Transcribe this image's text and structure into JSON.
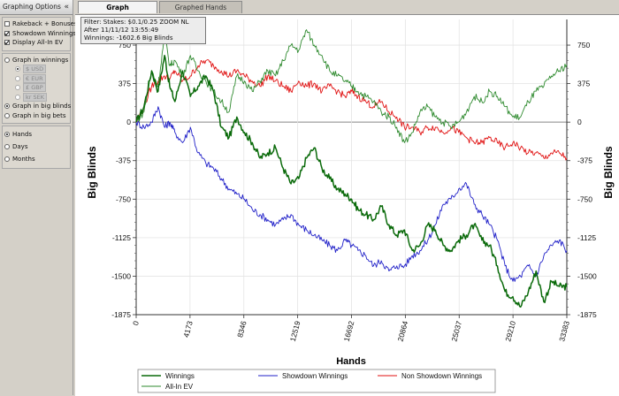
{
  "sidebar": {
    "title": "Graphing Options",
    "collapse_glyph": "«",
    "checkboxes": [
      {
        "label": "Rakeback + Bonuses",
        "checked": false
      },
      {
        "label": "Showdown Winnings",
        "checked": true
      },
      {
        "label": "Display All-In EV",
        "checked": true
      }
    ],
    "graph_in_winnings": "Graph in winnings",
    "currencies": [
      "$ USD",
      "€ EUR",
      "£ GBP",
      "kr SEK"
    ],
    "graph_in_big_blinds": "Graph in big blinds",
    "graph_in_big_bets": "Graph in big bets",
    "periods": [
      "Hands",
      "Days",
      "Months"
    ]
  },
  "tabs": {
    "graph": "Graph",
    "graphed_hands": "Graphed Hands"
  },
  "info": {
    "filter": "Filter: Stakes: $0.1/0.25 ZOOM NL",
    "after": "After 11/11/12 13:55:49",
    "winnings": "Winnings: -1602.6 Big Blinds"
  },
  "colors": {
    "winnings": "#0a6a0a",
    "showdown": "#2020c8",
    "non_showdown": "#e01010",
    "allin_ev": "#2e8a2e"
  },
  "chart_data": {
    "type": "line",
    "title": "",
    "xlabel": "Hands",
    "ylabel": "Big Blinds",
    "xlim": [
      0,
      33383
    ],
    "ylim": [
      -1875,
      1000
    ],
    "x_ticks": [
      0,
      4173,
      8346,
      12519,
      16692,
      20864,
      25037,
      29210,
      33383
    ],
    "y_ticks": [
      750,
      375,
      0,
      -375,
      -750,
      -1125,
      -1500,
      -1875
    ],
    "grid": true,
    "legend_position": "bottom",
    "series": [
      {
        "name": "Winnings",
        "color_key": "winnings",
        "x": [
          0,
          600,
          1200,
          1700,
          2200,
          2600,
          3000,
          3600,
          4200,
          4800,
          5400,
          6000,
          6600,
          7200,
          7800,
          8400,
          9000,
          9600,
          10200,
          10800,
          11400,
          12000,
          12600,
          13200,
          13800,
          14400,
          15000,
          15600,
          16200,
          16700,
          17200,
          17800,
          18400,
          19000,
          19600,
          20200,
          20800,
          21400,
          22000,
          22600,
          23200,
          23800,
          24400,
          25000,
          25600,
          26200,
          26800,
          27400,
          28000,
          28600,
          29200,
          29800,
          30400,
          31000,
          31600,
          32200,
          32800,
          33383
        ],
        "y": [
          0,
          150,
          500,
          300,
          650,
          350,
          200,
          500,
          250,
          350,
          450,
          300,
          -50,
          -150,
          50,
          -100,
          -200,
          -350,
          -300,
          -250,
          -450,
          -600,
          -550,
          -350,
          -250,
          -450,
          -550,
          -650,
          -700,
          -750,
          -850,
          -900,
          -950,
          -820,
          -1000,
          -1100,
          -1050,
          -1250,
          -1200,
          -1000,
          -1050,
          -1200,
          -1250,
          -1150,
          -1100,
          -1000,
          -1150,
          -1200,
          -1400,
          -1650,
          -1700,
          -1800,
          -1650,
          -1450,
          -1750,
          -1550,
          -1600,
          -1603
        ]
      },
      {
        "name": "Showdown Winnings",
        "color_key": "showdown",
        "x": [
          0,
          600,
          1200,
          1700,
          2200,
          2600,
          3000,
          3600,
          4200,
          4800,
          5400,
          6000,
          6600,
          7200,
          7800,
          8400,
          9000,
          9600,
          10200,
          10800,
          11400,
          12000,
          12600,
          13200,
          13800,
          14400,
          15000,
          15600,
          16200,
          16700,
          17200,
          17800,
          18400,
          19000,
          19600,
          20200,
          20800,
          21400,
          22000,
          22600,
          23200,
          23800,
          24400,
          25000,
          25600,
          26200,
          26800,
          27400,
          28000,
          28600,
          29200,
          29800,
          30400,
          31000,
          31600,
          32200,
          32800,
          33383
        ],
        "y": [
          0,
          -50,
          0,
          150,
          -50,
          0,
          -100,
          -200,
          -50,
          -300,
          -400,
          -450,
          -550,
          -650,
          -700,
          -750,
          -850,
          -900,
          -950,
          -1000,
          -950,
          -900,
          -1000,
          -1050,
          -1100,
          -1150,
          -1200,
          -1250,
          -1150,
          -1200,
          -1250,
          -1300,
          -1400,
          -1350,
          -1450,
          -1400,
          -1400,
          -1300,
          -1250,
          -1150,
          -1000,
          -800,
          -750,
          -650,
          -600,
          -800,
          -900,
          -1000,
          -1150,
          -1400,
          -1550,
          -1500,
          -1400,
          -1500,
          -1300,
          -1200,
          -1150,
          -1250
        ]
      },
      {
        "name": "Non Showdown Winnings",
        "color_key": "non_showdown",
        "x": [
          0,
          600,
          1200,
          1700,
          2200,
          2600,
          3000,
          3600,
          4200,
          4800,
          5400,
          6000,
          6600,
          7200,
          7800,
          8400,
          9000,
          9600,
          10200,
          10800,
          11400,
          12000,
          12600,
          13200,
          13800,
          14400,
          15000,
          15600,
          16200,
          16700,
          17200,
          17800,
          18400,
          19000,
          19600,
          20200,
          20800,
          21400,
          22000,
          22600,
          23200,
          23800,
          24400,
          25000,
          25600,
          26200,
          26800,
          27400,
          28000,
          28600,
          29200,
          29800,
          30400,
          31000,
          31600,
          32200,
          32800,
          33383
        ],
        "y": [
          0,
          150,
          350,
          400,
          450,
          420,
          500,
          400,
          450,
          550,
          600,
          550,
          500,
          450,
          500,
          450,
          400,
          350,
          450,
          400,
          350,
          300,
          400,
          350,
          380,
          300,
          350,
          300,
          250,
          300,
          250,
          200,
          150,
          200,
          100,
          50,
          -50,
          -50,
          -100,
          -50,
          -50,
          -100,
          -50,
          -100,
          -150,
          -200,
          -200,
          -150,
          -200,
          -250,
          -200,
          -250,
          -300,
          -300,
          -350,
          -300,
          -300,
          -350
        ]
      },
      {
        "name": "All-In EV",
        "color_key": "allin_ev",
        "x": [
          0,
          600,
          1200,
          1700,
          2200,
          2600,
          3000,
          3600,
          4200,
          4800,
          5400,
          6000,
          6600,
          7200,
          7800,
          8400,
          9000,
          9600,
          10200,
          10800,
          11400,
          12000,
          12600,
          13200,
          13800,
          14400,
          15000,
          15600,
          16200,
          16700,
          17200,
          17800,
          18400,
          19000,
          19600,
          20200,
          20800,
          21400,
          22000,
          22600,
          23200,
          23800,
          24400,
          25000,
          25600,
          26200,
          26800,
          27400,
          28000,
          28600,
          29200,
          29800,
          30400,
          31000,
          31600,
          32200,
          32800,
          33383
        ],
        "y": [
          0,
          100,
          500,
          350,
          850,
          550,
          600,
          450,
          650,
          500,
          400,
          300,
          200,
          100,
          450,
          400,
          300,
          400,
          500,
          450,
          600,
          750,
          700,
          900,
          750,
          650,
          500,
          450,
          400,
          350,
          300,
          250,
          200,
          100,
          50,
          -50,
          -200,
          -100,
          100,
          150,
          50,
          0,
          -50,
          0,
          100,
          250,
          200,
          300,
          250,
          150,
          50,
          50,
          200,
          300,
          350,
          450,
          500,
          560
        ]
      }
    ]
  }
}
